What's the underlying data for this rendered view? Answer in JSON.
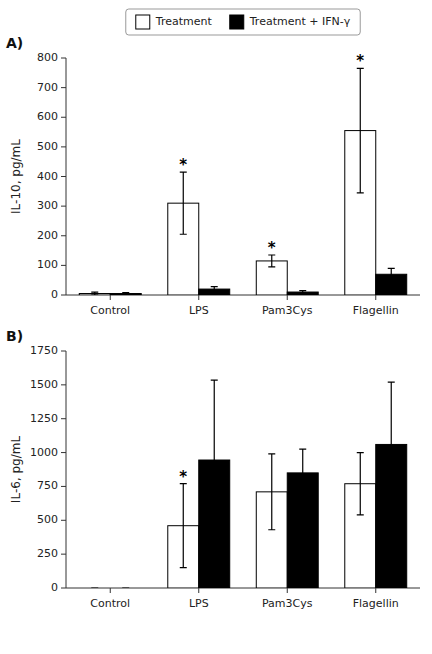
{
  "chart_data": [
    {
      "type": "bar",
      "title": "A)",
      "y_label": "IL-10, pg/mL",
      "categories": [
        "Control",
        "LPS",
        "Pam3Cys",
        "Flagellin"
      ],
      "series": [
        {
          "name": "Treatment",
          "color": "#ffffff",
          "values": [
            5,
            310,
            115,
            555
          ],
          "errors": [
            5,
            105,
            20,
            210
          ]
        },
        {
          "name": "Treatment + IFN-γ",
          "color": "#000000",
          "values": [
            5,
            20,
            10,
            70
          ],
          "errors": [
            3,
            8,
            5,
            20
          ]
        }
      ],
      "annotations": [
        {
          "text": "*",
          "category": "LPS",
          "series": "Treatment"
        },
        {
          "text": "*",
          "category": "Pam3Cys",
          "series": "Treatment"
        },
        {
          "text": "*",
          "category": "Flagellin",
          "series": "Treatment"
        }
      ],
      "ylim": [
        0,
        800
      ],
      "yticks": [
        0,
        100,
        200,
        300,
        400,
        500,
        600,
        700,
        800
      ],
      "legend": "top"
    },
    {
      "type": "bar",
      "title": "B)",
      "y_label": "IL-6, pg/mL",
      "categories": [
        "Control",
        "LPS",
        "Pam3Cys",
        "Flagellin"
      ],
      "series": [
        {
          "name": "Treatment",
          "color": "#ffffff",
          "values": [
            0,
            460,
            710,
            770
          ],
          "errors": [
            0,
            310,
            280,
            230
          ]
        },
        {
          "name": "Treatment + IFN-γ",
          "color": "#000000",
          "values": [
            0,
            945,
            850,
            1060
          ],
          "errors": [
            0,
            590,
            175,
            460
          ]
        }
      ],
      "annotations": [
        {
          "text": "*",
          "category": "LPS",
          "series": "Treatment"
        }
      ],
      "ylim": [
        0,
        1750
      ],
      "yticks": [
        0,
        250,
        500,
        750,
        1000,
        1250,
        1500,
        1750
      ]
    }
  ]
}
